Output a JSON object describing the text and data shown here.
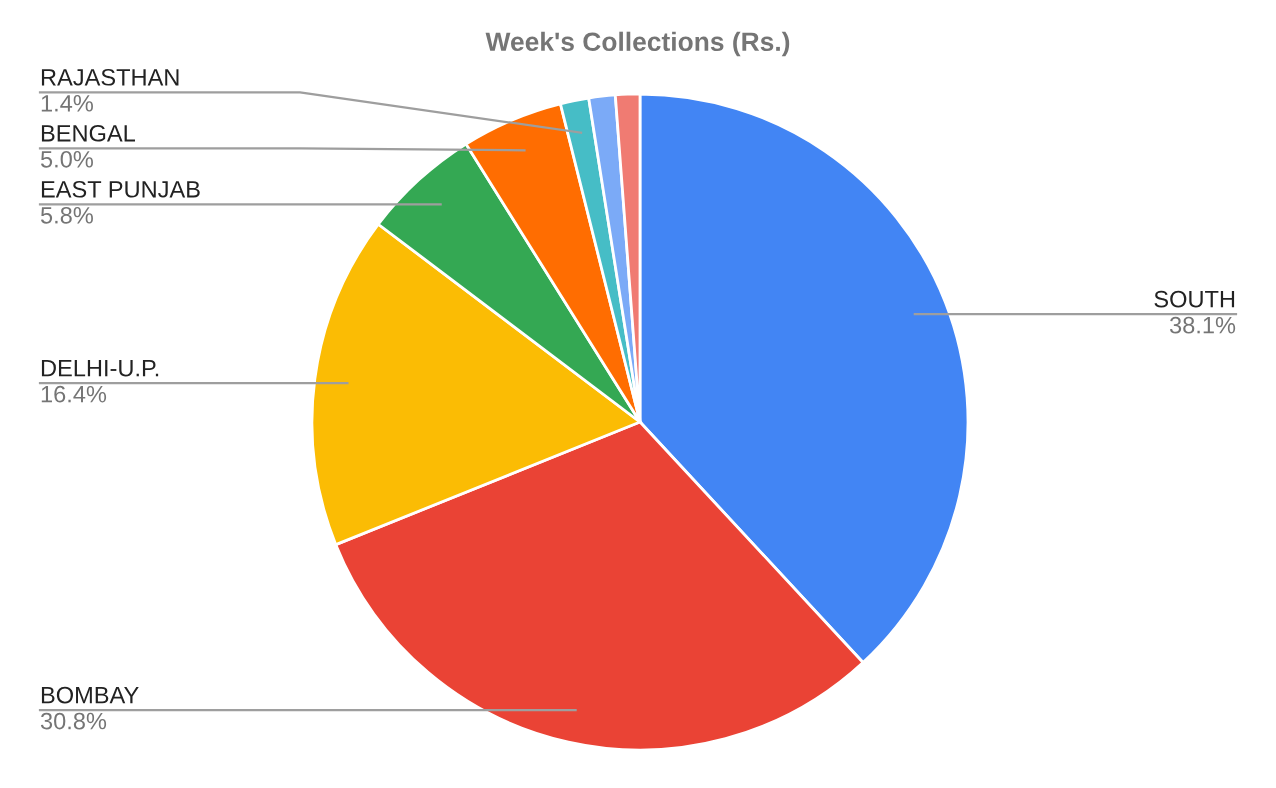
{
  "chart_data": {
    "type": "pie",
    "title": "Week's Collections (Rs.)",
    "categories": [
      "SOUTH",
      "BOMBAY",
      "DELHI-U.P.",
      "EAST PUNJAB",
      "BENGAL",
      "RAJASTHAN",
      null,
      null
    ],
    "values": [
      38.1,
      30.8,
      16.4,
      5.8,
      5.0,
      1.4,
      1.3,
      1.2
    ],
    "colors": [
      "#4285f4",
      "#ea4335",
      "#fbbc04",
      "#34a853",
      "#ff6d01",
      "#46bdc6",
      "#7baaf7",
      "#f07b72"
    ],
    "value_labels": [
      "38.1%",
      "30.8%",
      "16.4%",
      "5.8%",
      "5.0%",
      "1.4%",
      null,
      null
    ],
    "legend": false
  }
}
